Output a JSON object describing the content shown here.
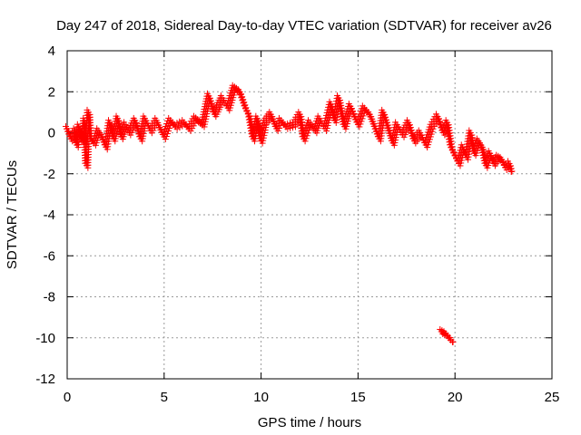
{
  "chart_data": {
    "type": "scatter",
    "title": "Day 247 of 2018, Sidereal Day-to-day VTEC variation (SDTVAR) for receiver av26",
    "xlabel": "GPS time / hours",
    "ylabel": "SDTVAR / TECUs",
    "xlim": [
      0,
      25
    ],
    "ylim": [
      -12,
      4
    ],
    "xticks": [
      "0",
      "5",
      "10",
      "15",
      "20",
      "25"
    ],
    "yticks": [
      "4",
      "2",
      "0",
      "-2",
      "-4",
      "-6",
      "-8",
      "-10",
      "-12"
    ],
    "grid": true,
    "marker": "+",
    "color": "#ff0000",
    "series": [
      {
        "name": "av26",
        "points": [
          [
            0.0,
            0.2
          ],
          [
            0.2,
            -0.3
          ],
          [
            0.4,
            0.1
          ],
          [
            0.5,
            -0.6
          ],
          [
            0.6,
            0.3
          ],
          [
            0.8,
            -0.4
          ],
          [
            0.9,
            0.6
          ],
          [
            1.0,
            -1.6
          ],
          [
            1.1,
            1.0
          ],
          [
            1.2,
            -0.3
          ],
          [
            1.4,
            -0.5
          ],
          [
            1.6,
            0.1
          ],
          [
            1.8,
            -0.2
          ],
          [
            2.0,
            -0.7
          ],
          [
            2.2,
            0.5
          ],
          [
            2.4,
            -0.3
          ],
          [
            2.6,
            0.7
          ],
          [
            2.8,
            -0.2
          ],
          [
            3.0,
            0.4
          ],
          [
            3.2,
            0.0
          ],
          [
            3.5,
            0.6
          ],
          [
            3.8,
            -0.3
          ],
          [
            4.0,
            0.7
          ],
          [
            4.3,
            0.1
          ],
          [
            4.6,
            0.6
          ],
          [
            5.0,
            -0.2
          ],
          [
            5.3,
            0.6
          ],
          [
            5.6,
            0.3
          ],
          [
            6.0,
            0.5
          ],
          [
            6.3,
            0.2
          ],
          [
            6.6,
            0.7
          ],
          [
            7.0,
            0.4
          ],
          [
            7.3,
            1.8
          ],
          [
            7.6,
            0.9
          ],
          [
            8.0,
            1.7
          ],
          [
            8.3,
            1.2
          ],
          [
            8.6,
            2.2
          ],
          [
            8.9,
            2.0
          ],
          [
            9.2,
            1.2
          ],
          [
            9.4,
            0.8
          ],
          [
            9.6,
            -0.3
          ],
          [
            9.8,
            0.7
          ],
          [
            10.0,
            -0.4
          ],
          [
            10.2,
            0.5
          ],
          [
            10.5,
            0.9
          ],
          [
            10.8,
            0.2
          ],
          [
            11.0,
            0.6
          ],
          [
            11.3,
            0.3
          ],
          [
            11.7,
            0.4
          ],
          [
            12.0,
            0.9
          ],
          [
            12.2,
            -0.3
          ],
          [
            12.5,
            0.5
          ],
          [
            12.8,
            0.1
          ],
          [
            13.0,
            0.7
          ],
          [
            13.3,
            0.2
          ],
          [
            13.6,
            1.4
          ],
          [
            13.8,
            0.6
          ],
          [
            14.0,
            1.7
          ],
          [
            14.3,
            0.3
          ],
          [
            14.6,
            1.3
          ],
          [
            15.0,
            0.4
          ],
          [
            15.3,
            1.2
          ],
          [
            15.6,
            0.9
          ],
          [
            15.9,
            0.2
          ],
          [
            16.1,
            -0.3
          ],
          [
            16.3,
            1.0
          ],
          [
            16.6,
            0.1
          ],
          [
            16.8,
            -0.5
          ],
          [
            17.0,
            0.4
          ],
          [
            17.3,
            -0.1
          ],
          [
            17.6,
            0.5
          ],
          [
            17.9,
            -0.4
          ],
          [
            18.2,
            0.0
          ],
          [
            18.5,
            -0.6
          ],
          [
            18.8,
            0.3
          ],
          [
            19.1,
            0.8
          ],
          [
            19.4,
            0.0
          ],
          [
            19.6,
            0.5
          ],
          [
            19.8,
            -0.7
          ],
          [
            20.0,
            -1.1
          ],
          [
            20.2,
            -1.5
          ],
          [
            20.4,
            -0.7
          ],
          [
            20.6,
            -1.2
          ],
          [
            20.8,
            0.0
          ],
          [
            21.0,
            -1.0
          ],
          [
            21.2,
            -0.4
          ],
          [
            21.4,
            -0.7
          ],
          [
            21.6,
            -1.6
          ],
          [
            21.8,
            -1.0
          ],
          [
            22.0,
            -1.5
          ],
          [
            22.2,
            -1.2
          ],
          [
            22.4,
            -1.3
          ],
          [
            22.6,
            -1.7
          ],
          [
            22.8,
            -1.5
          ],
          [
            22.9,
            -1.9
          ],
          [
            19.3,
            -9.7
          ],
          [
            19.5,
            -9.8
          ],
          [
            19.7,
            -10.0
          ],
          [
            19.9,
            -10.2
          ]
        ]
      }
    ]
  }
}
